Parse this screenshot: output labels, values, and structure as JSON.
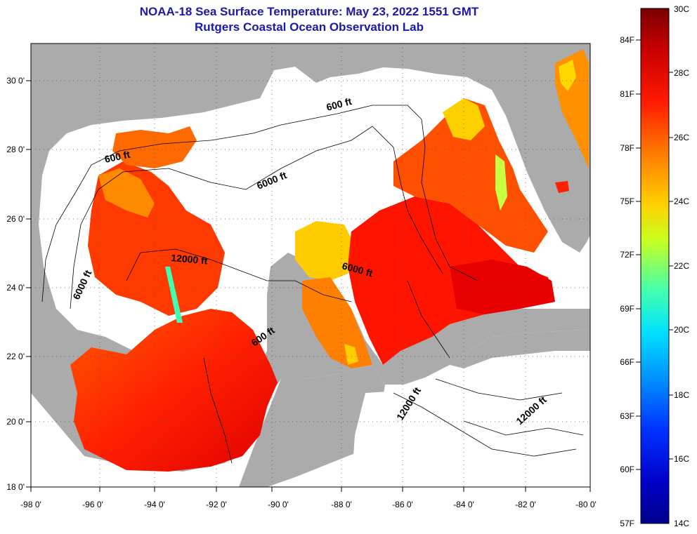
{
  "title_line1": "NOAA-18 Sea Surface Temperature:  May 23, 2022 1551 GMT",
  "title_line2": "Rutgers Coastal Ocean Observation Lab",
  "lon_labels": [
    "-98 0'",
    "-96 0'",
    "-94 0'",
    "-92 0'",
    "-90 0'",
    "-88 0'",
    "-86 0'",
    "-84 0'",
    "-82 0'",
    "-80 0'"
  ],
  "lat_labels": [
    "30 0'",
    "28 0'",
    "26 0'",
    "24 0'",
    "22 0'",
    "20 0'",
    "18 0'"
  ],
  "contour_labels": [
    {
      "id": "c1",
      "text": "600 ft"
    },
    {
      "id": "c2",
      "text": "600 ft"
    },
    {
      "id": "c3",
      "text": "6000 ft"
    },
    {
      "id": "c4",
      "text": "12000 ft"
    },
    {
      "id": "c5",
      "text": "6000 ft"
    },
    {
      "id": "c6",
      "text": "6000 ft"
    },
    {
      "id": "c7",
      "text": "600 ft"
    },
    {
      "id": "c8",
      "text": "12000 ft"
    },
    {
      "id": "c9",
      "text": "12000 ft"
    }
  ],
  "colorbar": {
    "celsius_labels": [
      "30C",
      "28C",
      "26C",
      "24C",
      "22C",
      "20C",
      "18C",
      "16C",
      "14C"
    ],
    "fahrenheit_labels": [
      "84F",
      "81F",
      "78F",
      "75F",
      "72F",
      "69F",
      "66F",
      "63F",
      "60F",
      "57F"
    ],
    "colors": [
      "#7a0000",
      "#c80000",
      "#ff1a00",
      "#ff7a00",
      "#ffd000",
      "#c8ff20",
      "#40ffb0",
      "#00e0ff",
      "#0090ff",
      "#0030ff",
      "#0000c8",
      "#00008a"
    ]
  },
  "colors": {
    "land": "#ababab",
    "ocean_nodata": "#ffffff",
    "title": "#1a1aa8"
  }
}
